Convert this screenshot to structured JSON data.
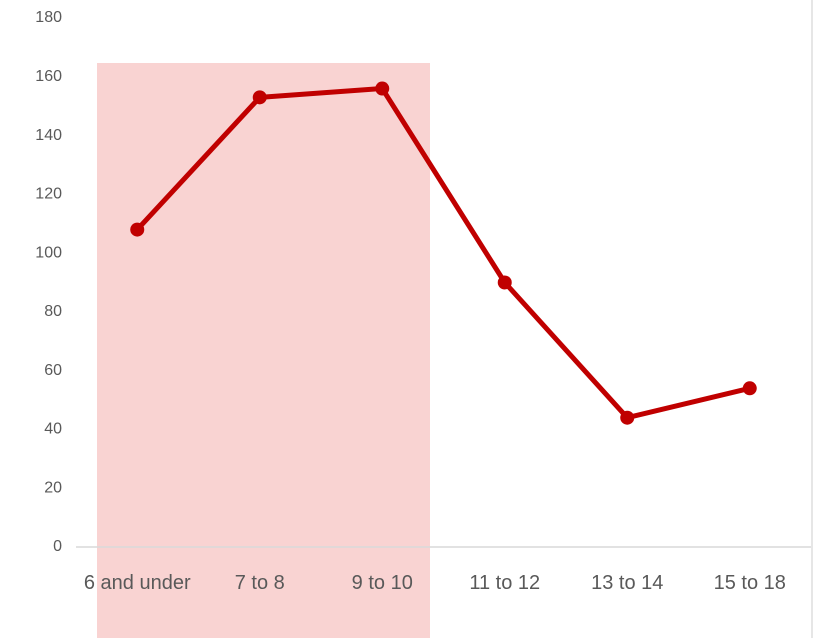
{
  "chart_data": {
    "type": "line",
    "categories": [
      "6 and under",
      "7 to 8",
      "9 to 10",
      "11 to 12",
      "13 to 14",
      "15 to 18"
    ],
    "series": [
      {
        "name": null,
        "color": "#c00000",
        "values": [
          108,
          153,
          156,
          90,
          44,
          54
        ]
      }
    ],
    "ylim": [
      0,
      180
    ],
    "yticks": [
      0,
      20,
      40,
      60,
      80,
      100,
      120,
      140,
      160,
      180
    ],
    "grid": false
  }
}
